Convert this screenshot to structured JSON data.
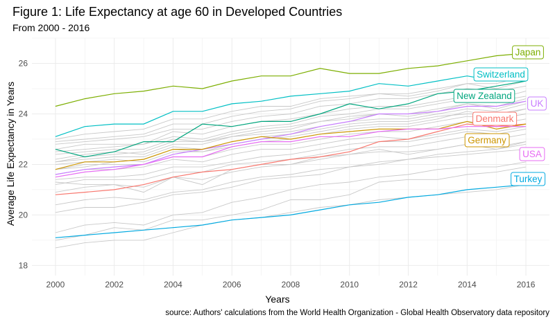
{
  "chart_data": {
    "type": "line",
    "title": "Figure 1: Life Expectancy at age 60 in Developed Countries",
    "subtitle": "From 2000 - 2016",
    "xlabel": "Years",
    "ylabel": "Average Life Expectancy in Years",
    "caption": "source: Authors' calculations from the World Health Organization - Global Health Observatory data repository",
    "xlim": [
      1999.2,
      2016.8
    ],
    "ylim": [
      17.6,
      27.0
    ],
    "x_ticks": [
      2000,
      2002,
      2004,
      2006,
      2008,
      2010,
      2012,
      2014,
      2016
    ],
    "y_ticks": [
      18,
      20,
      22,
      24,
      26
    ],
    "grid": true,
    "x": [
      2000,
      2001,
      2002,
      2003,
      2004,
      2005,
      2006,
      2007,
      2008,
      2009,
      2010,
      2011,
      2012,
      2013,
      2014,
      2015,
      2016
    ],
    "series": [
      {
        "name": "Japan",
        "color": "#7cae00",
        "values": [
          24.3,
          24.6,
          24.8,
          24.9,
          25.1,
          25.0,
          25.3,
          25.5,
          25.5,
          25.8,
          25.6,
          25.6,
          25.8,
          25.9,
          26.1,
          26.3,
          26.4
        ]
      },
      {
        "name": "Switzerland",
        "color": "#00bfc4",
        "values": [
          23.1,
          23.5,
          23.6,
          23.6,
          24.1,
          24.1,
          24.4,
          24.5,
          24.7,
          24.8,
          24.9,
          25.2,
          25.1,
          25.3,
          25.5,
          25.3,
          25.5
        ]
      },
      {
        "name": "New Zealand",
        "color": "#00a67e",
        "values": [
          22.6,
          22.3,
          22.5,
          22.9,
          22.9,
          23.6,
          23.5,
          23.7,
          23.7,
          24.0,
          24.4,
          24.2,
          24.4,
          24.8,
          24.9,
          25.1,
          25.3
        ]
      },
      {
        "name": "UK",
        "color": "#c77cff",
        "values": [
          21.6,
          21.8,
          21.9,
          22.0,
          22.4,
          22.6,
          22.8,
          23.0,
          23.2,
          23.5,
          23.7,
          24.0,
          24.0,
          24.1,
          24.3,
          24.3,
          24.5
        ]
      },
      {
        "name": "Denmark",
        "color": "#f8766d",
        "values": [
          20.8,
          20.9,
          21.0,
          21.2,
          21.5,
          21.7,
          21.8,
          22.0,
          22.2,
          22.3,
          22.5,
          22.9,
          23.0,
          23.3,
          23.6,
          23.5,
          23.6
        ]
      },
      {
        "name": "Germany",
        "color": "#cd9600",
        "values": [
          21.8,
          22.1,
          22.1,
          22.2,
          22.6,
          22.6,
          22.9,
          23.1,
          23.0,
          23.2,
          23.3,
          23.4,
          23.4,
          23.4,
          23.7,
          23.4,
          23.6
        ]
      },
      {
        "name": "USA",
        "color": "#e76bf3",
        "values": [
          21.5,
          21.7,
          21.8,
          22.0,
          22.3,
          22.3,
          22.7,
          22.9,
          22.9,
          23.1,
          23.1,
          23.3,
          23.4,
          23.4,
          23.5,
          23.5,
          23.5
        ]
      },
      {
        "name": "Turkey",
        "color": "#00a9e0",
        "values": [
          19.1,
          19.2,
          19.3,
          19.4,
          19.5,
          19.6,
          19.8,
          19.9,
          20.0,
          20.2,
          20.4,
          20.5,
          20.7,
          20.8,
          21.0,
          21.1,
          21.2
        ]
      }
    ],
    "background_series": [
      {
        "values": [
          23.0,
          23.2,
          23.3,
          23.4,
          23.8,
          23.8,
          24.1,
          24.3,
          24.3,
          24.6,
          24.7,
          24.8,
          24.8,
          25.0,
          25.2,
          25.2,
          25.5
        ]
      },
      {
        "values": [
          22.9,
          23.0,
          23.1,
          23.2,
          23.6,
          23.6,
          23.9,
          24.1,
          24.2,
          24.5,
          24.6,
          24.8,
          24.7,
          24.9,
          25.2,
          25.0,
          25.3
        ]
      },
      {
        "values": [
          22.8,
          22.9,
          23.0,
          23.1,
          23.4,
          23.4,
          23.7,
          23.9,
          24.0,
          24.3,
          24.4,
          24.6,
          24.6,
          24.8,
          25.0,
          24.9,
          25.1
        ]
      },
      {
        "values": [
          22.6,
          22.8,
          22.8,
          22.8,
          23.3,
          23.2,
          23.5,
          23.7,
          23.8,
          24.0,
          24.2,
          24.3,
          24.3,
          24.5,
          24.7,
          24.6,
          24.9
        ]
      },
      {
        "values": [
          22.5,
          22.6,
          22.7,
          22.8,
          23.1,
          23.0,
          23.3,
          23.5,
          23.6,
          23.9,
          24.0,
          24.2,
          24.2,
          24.4,
          24.6,
          24.5,
          24.7
        ]
      },
      {
        "values": [
          22.4,
          22.5,
          22.6,
          22.6,
          23.0,
          22.9,
          23.2,
          23.4,
          23.5,
          23.7,
          23.9,
          24.0,
          24.0,
          24.2,
          24.4,
          24.3,
          24.6
        ]
      },
      {
        "values": [
          22.2,
          22.4,
          22.5,
          22.4,
          22.8,
          22.8,
          23.1,
          23.2,
          23.3,
          23.5,
          23.7,
          23.8,
          23.8,
          24.0,
          24.2,
          24.1,
          24.4
        ]
      },
      {
        "values": [
          22.1,
          22.2,
          22.3,
          22.3,
          22.7,
          22.6,
          22.9,
          23.1,
          23.2,
          23.4,
          23.6,
          23.7,
          23.7,
          23.9,
          24.0,
          24.0,
          24.2
        ]
      },
      {
        "values": [
          22.0,
          22.1,
          22.2,
          22.1,
          22.5,
          22.5,
          22.7,
          22.9,
          23.0,
          23.2,
          23.4,
          23.5,
          23.5,
          23.7,
          23.9,
          23.8,
          24.0
        ]
      },
      {
        "values": [
          21.8,
          22.0,
          22.0,
          22.0,
          22.3,
          22.3,
          22.6,
          22.8,
          22.8,
          23.0,
          23.2,
          23.3,
          23.3,
          23.5,
          23.7,
          23.6,
          23.8
        ]
      },
      {
        "values": [
          21.6,
          21.8,
          21.8,
          21.9,
          22.2,
          22.1,
          22.4,
          22.6,
          22.6,
          22.8,
          23.0,
          23.1,
          23.0,
          23.2,
          23.4,
          23.3,
          23.5
        ]
      },
      {
        "values": [
          21.4,
          21.5,
          21.5,
          21.6,
          21.9,
          21.9,
          22.1,
          22.3,
          22.4,
          22.6,
          22.8,
          22.9,
          22.9,
          23.1,
          23.3,
          23.2,
          23.4
        ]
      },
      {
        "values": [
          21.2,
          21.4,
          21.4,
          21.4,
          21.7,
          21.7,
          22.0,
          22.1,
          22.2,
          22.4,
          22.6,
          22.7,
          22.7,
          22.9,
          23.1,
          23.0,
          23.2
        ]
      },
      {
        "values": [
          20.9,
          21.1,
          21.2,
          21.1,
          21.5,
          21.4,
          21.7,
          21.9,
          22.0,
          22.2,
          22.4,
          22.5,
          22.5,
          22.6,
          22.8,
          22.7,
          22.9
        ]
      },
      {
        "values": [
          21.3,
          21.2,
          21.2,
          20.9,
          21.5,
          21.2,
          21.8,
          22.0,
          22.0,
          22.3,
          22.4,
          22.6,
          22.4,
          22.6,
          22.8,
          22.6,
          22.9
        ]
      },
      {
        "values": [
          20.4,
          20.6,
          20.7,
          20.6,
          20.9,
          21.0,
          21.3,
          21.5,
          21.6,
          21.8,
          21.9,
          22.1,
          22.2,
          22.4,
          22.5,
          22.6,
          22.8
        ]
      },
      {
        "values": [
          20.1,
          20.3,
          20.3,
          20.5,
          20.8,
          20.9,
          21.1,
          21.4,
          21.5,
          21.6,
          21.9,
          22.0,
          22.2,
          22.3,
          22.4,
          22.5,
          22.6
        ]
      },
      {
        "values": [
          19.3,
          19.6,
          19.7,
          19.6,
          20.0,
          20.1,
          20.5,
          20.7,
          21.0,
          21.2,
          21.3,
          21.5,
          21.6,
          21.8,
          21.9,
          21.9,
          22.1
        ]
      },
      {
        "values": [
          19.0,
          19.2,
          19.5,
          19.4,
          19.8,
          19.8,
          20.0,
          20.2,
          20.6,
          20.6,
          20.8,
          21.3,
          21.4,
          21.4,
          21.6,
          21.7,
          21.9
        ]
      },
      {
        "values": [
          18.7,
          18.9,
          19.0,
          19.0,
          19.3,
          19.6,
          19.8,
          19.9,
          20.1,
          20.3,
          20.4,
          20.6,
          20.7,
          20.8,
          20.9,
          21.0,
          21.2
        ]
      },
      {
        "values": [
          21.8,
          21.9,
          22.1,
          22.2,
          22.6,
          22.5,
          22.8,
          23.0,
          23.1,
          23.3,
          23.5,
          23.6,
          23.6,
          23.8,
          24.1,
          23.9,
          24.2
        ]
      },
      {
        "values": [
          22.1,
          22.3,
          22.4,
          22.5,
          22.9,
          22.9,
          23.1,
          23.3,
          23.4,
          23.7,
          23.8,
          24.0,
          23.9,
          24.1,
          24.4,
          24.2,
          24.5
        ]
      }
    ]
  }
}
